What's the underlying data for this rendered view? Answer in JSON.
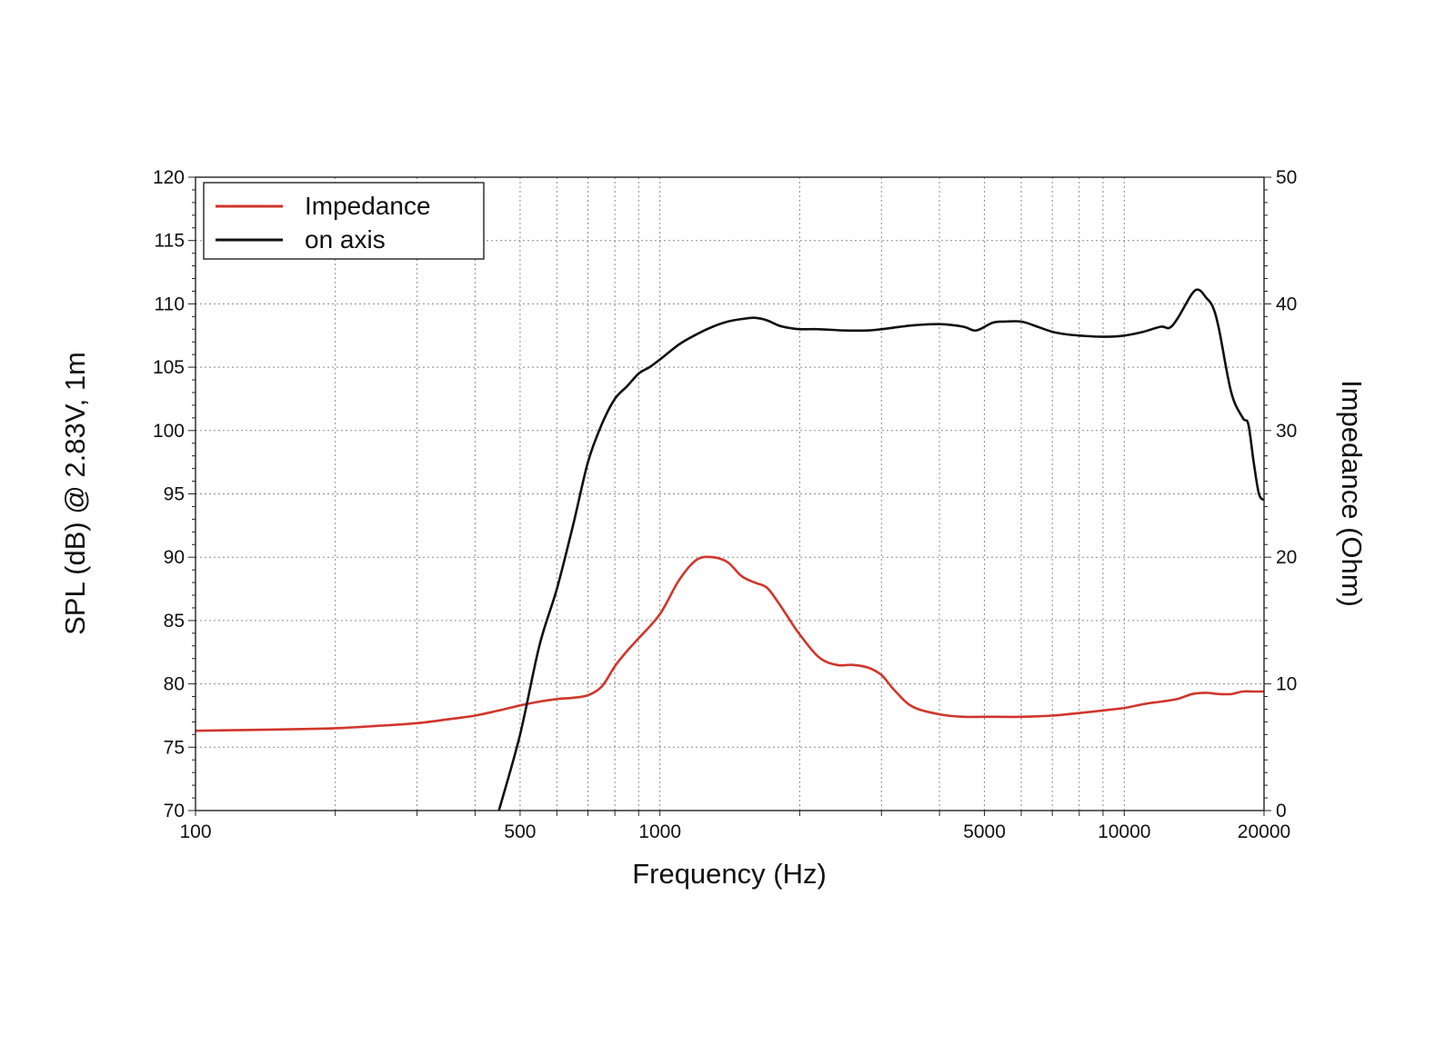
{
  "chart_data": {
    "type": "line",
    "xlabel": "Frequency (Hz)",
    "ylabel": "SPL (dB) @ 2.83V, 1m",
    "y2label": "Impedance (Ohm)",
    "x_scale": "log",
    "xlim": [
      100,
      20000
    ],
    "ylim": [
      70,
      120
    ],
    "y2lim": [
      0,
      50
    ],
    "grid": true,
    "legend_position": "top-left",
    "x_tick_labels": [
      "100",
      "500",
      "1000",
      "5000",
      "10000",
      "20000"
    ],
    "y_tick_labels": [
      "70",
      "75",
      "80",
      "85",
      "90",
      "95",
      "100",
      "105",
      "110",
      "115",
      "120"
    ],
    "y2_tick_labels": [
      "0",
      "10",
      "20",
      "30",
      "40",
      "50"
    ],
    "series": [
      {
        "name": "Impedance",
        "axis": "right",
        "color": "#d0362b",
        "x": [
          100,
          150,
          200,
          250,
          300,
          350,
          400,
          450,
          500,
          550,
          600,
          650,
          700,
          750,
          800,
          850,
          900,
          1000,
          1100,
          1200,
          1300,
          1400,
          1500,
          1600,
          1700,
          1800,
          1900,
          2000,
          2200,
          2400,
          2600,
          2800,
          3000,
          3200,
          3500,
          4000,
          4500,
          5000,
          6000,
          7000,
          8000,
          9000,
          10000,
          11000,
          12000,
          13000,
          14000,
          15000,
          16000,
          17000,
          18000,
          19000,
          20000
        ],
        "values": [
          6.3,
          6.4,
          6.5,
          6.7,
          6.9,
          7.2,
          7.5,
          7.9,
          8.3,
          8.6,
          8.8,
          8.9,
          9.1,
          9.8,
          11.4,
          12.6,
          13.6,
          15.5,
          18.2,
          19.8,
          20.0,
          19.6,
          18.5,
          18.0,
          17.6,
          16.4,
          15.1,
          13.9,
          12.1,
          11.5,
          11.5,
          11.3,
          10.7,
          9.5,
          8.2,
          7.6,
          7.4,
          7.4,
          7.4,
          7.5,
          7.7,
          7.9,
          8.1,
          8.4,
          8.6,
          8.8,
          9.2,
          9.3,
          9.2,
          9.2,
          9.4,
          9.4,
          9.4
        ]
      },
      {
        "name": "on axis",
        "axis": "left",
        "color": "#111111",
        "x": [
          450,
          500,
          550,
          600,
          650,
          700,
          750,
          800,
          850,
          900,
          950,
          1000,
          1100,
          1200,
          1300,
          1400,
          1500,
          1600,
          1700,
          1800,
          1900,
          2000,
          2200,
          2500,
          2800,
          3000,
          3500,
          4000,
          4500,
          4800,
          5200,
          5500,
          6000,
          6500,
          7000,
          7500,
          8000,
          9000,
          10000,
          11000,
          12000,
          12500,
          13000,
          14000,
          14500,
          15000,
          15500,
          16000,
          17000,
          18000,
          18500,
          19000,
          19500,
          20000
        ],
        "values": [
          70.0,
          76.0,
          83.0,
          87.5,
          92.5,
          97.5,
          100.5,
          102.5,
          103.5,
          104.5,
          105.0,
          105.6,
          106.8,
          107.6,
          108.2,
          108.6,
          108.8,
          108.9,
          108.7,
          108.3,
          108.1,
          108.0,
          108.0,
          107.9,
          107.9,
          108.0,
          108.3,
          108.4,
          108.2,
          107.9,
          108.5,
          108.6,
          108.6,
          108.2,
          107.8,
          107.6,
          107.5,
          107.4,
          107.5,
          107.8,
          108.2,
          108.1,
          108.8,
          110.8,
          111.1,
          110.5,
          109.8,
          108.0,
          103.0,
          101.0,
          100.5,
          97.5,
          95.0,
          94.5
        ]
      }
    ]
  }
}
